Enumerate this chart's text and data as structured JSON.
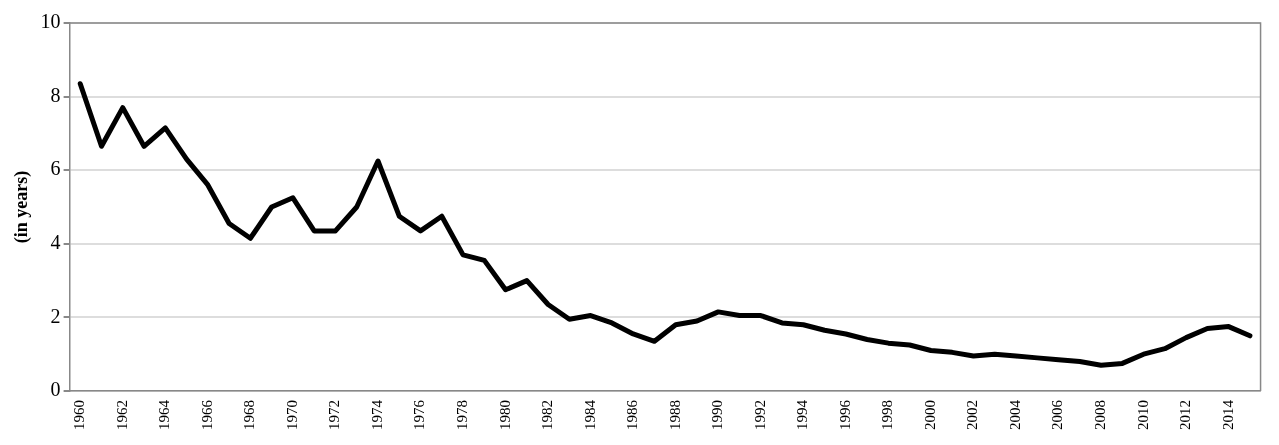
{
  "chart_data": {
    "type": "line",
    "ylabel": "(in years)",
    "categories": [
      "1960",
      null,
      "1962",
      null,
      "1964",
      null,
      "1966",
      null,
      "1968",
      null,
      "1970",
      null,
      "1972",
      null,
      "1974",
      null,
      "1976",
      null,
      "1978",
      null,
      "1980",
      null,
      "1982",
      null,
      "1984",
      null,
      "1986",
      null,
      "1988",
      null,
      "1990",
      null,
      "1992",
      null,
      "1994",
      null,
      "1996",
      null,
      "1998",
      null,
      "2000",
      null,
      "2002",
      null,
      "2004",
      null,
      "2006",
      null,
      "2008",
      null,
      "2010",
      null,
      "2012",
      null,
      "2014",
      null
    ],
    "series": [
      {
        "color": "#000000",
        "values": [
          8.35,
          6.65,
          7.7,
          6.65,
          7.15,
          6.3,
          5.6,
          4.55,
          4.15,
          5.0,
          5.25,
          4.35,
          4.35,
          5.0,
          6.25,
          4.75,
          4.35,
          4.75,
          3.7,
          3.55,
          2.75,
          3.0,
          2.35,
          1.95,
          2.05,
          1.85,
          1.55,
          1.35,
          1.8,
          1.9,
          2.15,
          2.05,
          2.05,
          1.85,
          1.8,
          1.65,
          1.55,
          1.4,
          1.3,
          1.25,
          1.1,
          1.05,
          0.95,
          1.0,
          0.95,
          0.9,
          0.85,
          0.8,
          0.7,
          0.75,
          1.0,
          1.15,
          1.45,
          1.7,
          1.75,
          1.5
        ]
      }
    ],
    "ylim": [
      0,
      10
    ],
    "yticks": [
      0,
      2,
      4,
      6,
      8,
      10
    ],
    "grid": "y",
    "legend": false,
    "marker": "none",
    "line_style": "solid"
  }
}
